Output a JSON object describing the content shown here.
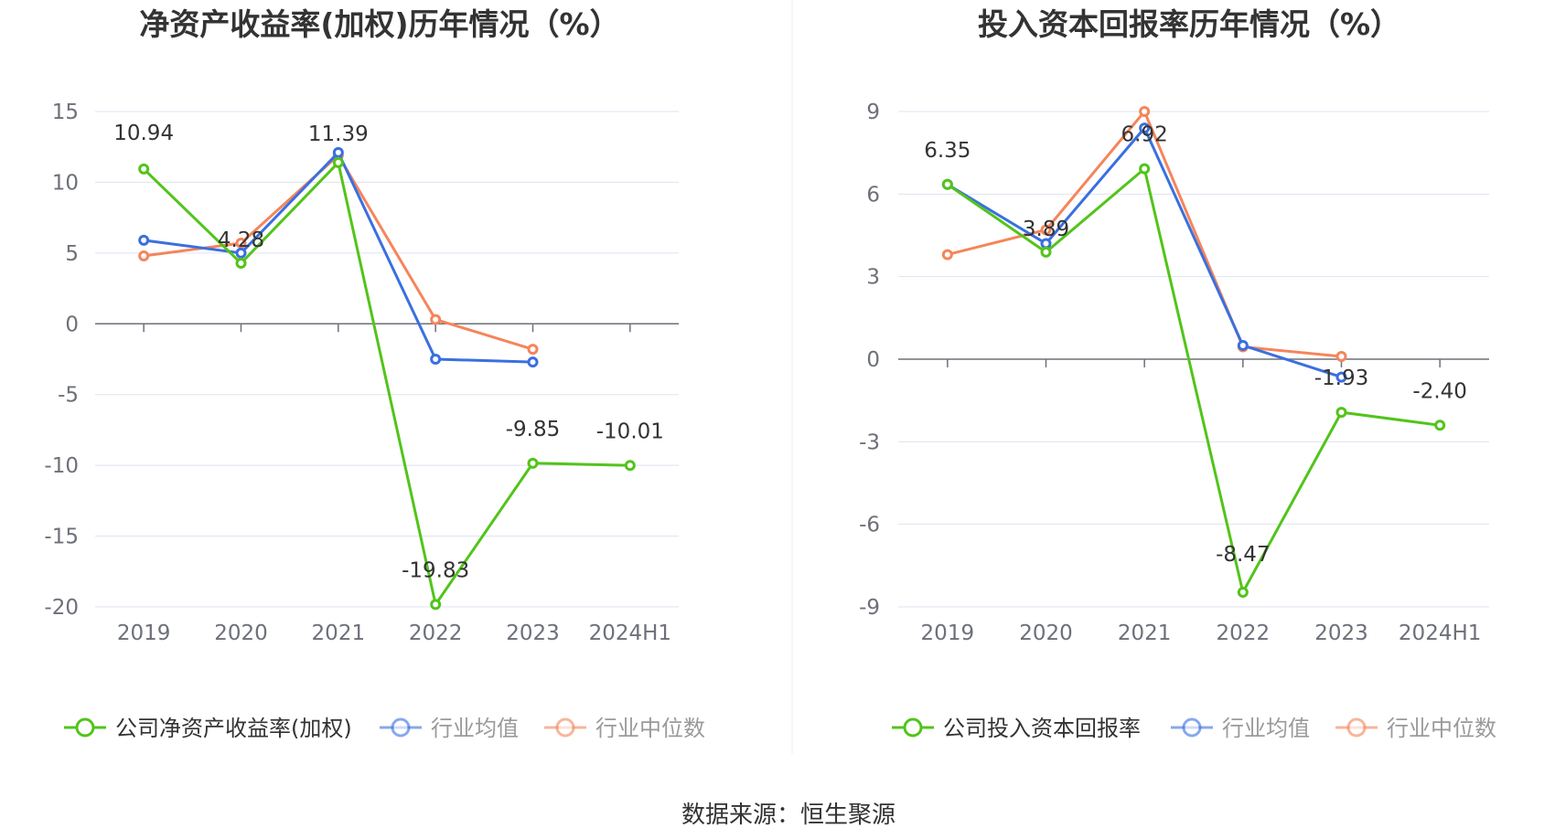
{
  "source": "数据来源：恒生聚源",
  "colors": {
    "company": "#52c41a",
    "industry_avg": "#3a6fe0",
    "industry_median": "#f5855a",
    "grid": "#dfe3f0",
    "axis": "#6e7079"
  },
  "chart_data": [
    {
      "type": "line",
      "title": "净资产收益率(加权)历年情况（%）",
      "categories": [
        "2019",
        "2020",
        "2021",
        "2022",
        "2023",
        "2024H1"
      ],
      "ylim": [
        -20,
        15
      ],
      "yticks": [
        15,
        10,
        5,
        0,
        -5,
        -10,
        -15,
        -20
      ],
      "grid": true,
      "legend_position": "bottom",
      "series": [
        {
          "name": "公司净资产收益率(加权)",
          "color_key": "company",
          "values": [
            10.94,
            4.28,
            11.39,
            -19.83,
            -9.85,
            -10.01
          ],
          "labels": [
            "10.94",
            "4.28",
            "11.39",
            "-19.83",
            "-9.85",
            "-10.01"
          ]
        },
        {
          "name": "行业均值",
          "color_key": "industry_avg",
          "values": [
            5.9,
            5.0,
            12.1,
            -2.5,
            -2.7,
            null
          ]
        },
        {
          "name": "行业中位数",
          "color_key": "industry_median",
          "values": [
            4.8,
            5.7,
            11.9,
            0.3,
            -1.8,
            null
          ]
        }
      ]
    },
    {
      "type": "line",
      "title": "投入资本回报率历年情况（%）",
      "categories": [
        "2019",
        "2020",
        "2021",
        "2022",
        "2023",
        "2024H1"
      ],
      "ylim": [
        -9,
        9
      ],
      "yticks": [
        9,
        6,
        3,
        0,
        -3,
        -6,
        -9
      ],
      "grid": true,
      "legend_position": "bottom",
      "series": [
        {
          "name": "公司投入资本回报率",
          "color_key": "company",
          "values": [
            6.35,
            3.89,
            6.92,
            -8.47,
            -1.93,
            -2.4
          ],
          "labels": [
            "6.35",
            "3.89",
            "6.92",
            "-8.47",
            "-1.93",
            "-2.40"
          ]
        },
        {
          "name": "行业均值",
          "color_key": "industry_avg",
          "values": [
            6.35,
            4.2,
            8.4,
            0.5,
            -0.65,
            null
          ]
        },
        {
          "name": "行业中位数",
          "color_key": "industry_median",
          "values": [
            3.8,
            4.7,
            9.0,
            0.45,
            0.1,
            null
          ]
        }
      ]
    }
  ]
}
